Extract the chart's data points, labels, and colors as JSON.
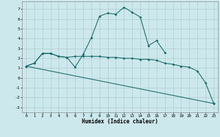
{
  "xlabel": "Humidex (Indice chaleur)",
  "xlim": [
    -0.5,
    23.5
  ],
  "ylim": [
    -3.5,
    7.8
  ],
  "yticks": [
    -3,
    -2,
    -1,
    0,
    1,
    2,
    3,
    4,
    5,
    6,
    7
  ],
  "xticks": [
    0,
    1,
    2,
    3,
    4,
    5,
    6,
    7,
    8,
    9,
    10,
    11,
    12,
    13,
    14,
    15,
    16,
    17,
    18,
    19,
    20,
    21,
    22,
    23
  ],
  "background_color": "#cce8ec",
  "grid_color": "#aacccc",
  "line_color": "#1a6b6b",
  "curve1_x": [
    0,
    1,
    2,
    3,
    4,
    5,
    6,
    7,
    8,
    9,
    10,
    11,
    12,
    13,
    14,
    15,
    16,
    17
  ],
  "curve1_y": [
    1.2,
    1.5,
    2.5,
    2.5,
    2.2,
    2.1,
    1.1,
    2.4,
    4.1,
    6.3,
    6.6,
    6.5,
    7.2,
    6.7,
    6.2,
    3.3,
    3.8,
    2.6
  ],
  "curve2_x": [
    0,
    1,
    2,
    3,
    4,
    5,
    6,
    7,
    8,
    9,
    10,
    11,
    12,
    13,
    14,
    15,
    16,
    17,
    18,
    19,
    20,
    21,
    22,
    23
  ],
  "curve2_y": [
    1.2,
    1.5,
    2.5,
    2.5,
    2.2,
    2.1,
    2.2,
    2.2,
    2.2,
    2.2,
    2.1,
    2.1,
    2.0,
    2.0,
    1.9,
    1.9,
    1.8,
    1.5,
    1.4,
    1.2,
    1.1,
    0.7,
    -0.5,
    -2.6
  ],
  "curve3_x": [
    0,
    23
  ],
  "curve3_y": [
    1.2,
    -2.6
  ]
}
